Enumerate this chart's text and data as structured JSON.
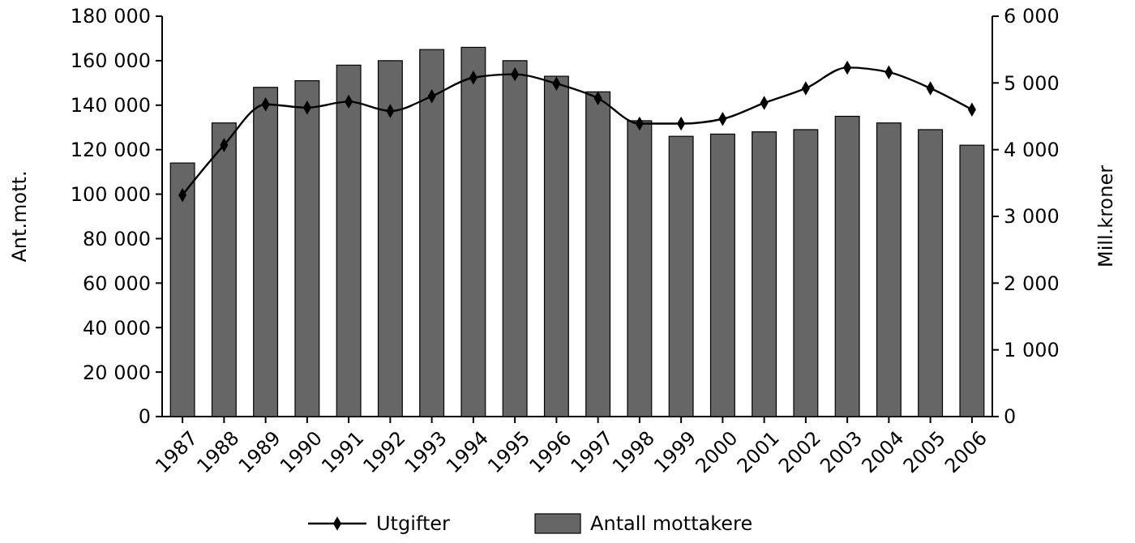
{
  "chart_data": {
    "type": "bar",
    "ylabel": "Ant.mott.",
    "y2label": "Mill.kroner",
    "categories": [
      "1987",
      "1988",
      "1989",
      "1990",
      "1991",
      "1992",
      "1993",
      "1994",
      "1995",
      "1996",
      "1997",
      "1998",
      "1999",
      "2000",
      "2001",
      "2002",
      "2003",
      "2004",
      "2005",
      "2006"
    ],
    "series": [
      {
        "name": "Utgifter",
        "type": "line",
        "axis": "y2",
        "color": "#000000",
        "marker": "diamond",
        "values": [
          3320,
          4070,
          4680,
          4630,
          4720,
          4580,
          4800,
          5080,
          5130,
          4990,
          4770,
          4390,
          4390,
          4460,
          4700,
          4920,
          5230,
          5160,
          4920,
          4600
        ]
      },
      {
        "name": "Antall mottakere",
        "color": "#666666",
        "values": [
          114000,
          132000,
          148000,
          151000,
          158000,
          160000,
          165000,
          166000,
          160000,
          153000,
          146000,
          133000,
          126000,
          127000,
          128000,
          129000,
          135000,
          132000,
          129000,
          122000
        ]
      }
    ],
    "ylim": [
      0,
      180000
    ],
    "yticks": [
      {
        "value": 0,
        "label": "0"
      },
      {
        "value": 20000,
        "label": "20 000"
      },
      {
        "value": 40000,
        "label": "40 000"
      },
      {
        "value": 60000,
        "label": "60 000"
      },
      {
        "value": 80000,
        "label": "80 000"
      },
      {
        "value": 100000,
        "label": "100 000"
      },
      {
        "value": 120000,
        "label": "120 000"
      },
      {
        "value": 140000,
        "label": "140 000"
      },
      {
        "value": 160000,
        "label": "160 000"
      },
      {
        "value": 180000,
        "label": "180 000"
      }
    ],
    "y2lim": [
      0,
      6000
    ],
    "y2ticks": [
      {
        "value": 0,
        "label": "0"
      },
      {
        "value": 1000,
        "label": "1 000"
      },
      {
        "value": 2000,
        "label": "2 000"
      },
      {
        "value": 3000,
        "label": "3 000"
      },
      {
        "value": 4000,
        "label": "4 000"
      },
      {
        "value": 5000,
        "label": "5 000"
      },
      {
        "value": 6000,
        "label": "6 000"
      }
    ],
    "grid": false,
    "legend": "bottom"
  }
}
